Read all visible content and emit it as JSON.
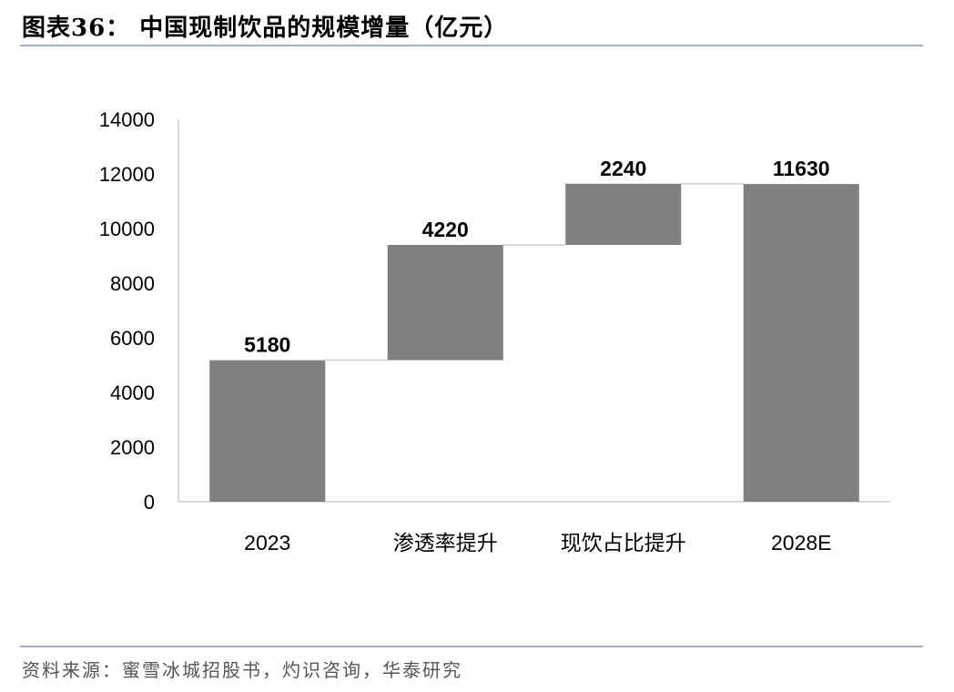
{
  "title": "图表36：  中国现制饮品的规模增量（亿元）",
  "source": "资料来源：蜜雪冰城招股书，灼识咨询，华泰研究",
  "colors": {
    "bar": "#808080",
    "connector": "#d9d9d9",
    "axis": "#d9d9d9",
    "text": "#000000",
    "rule": "#9fb4cc"
  },
  "chart_data": {
    "type": "bar",
    "subtype": "waterfall",
    "categories": [
      "2023",
      "渗透率提升",
      "现饮占比提升",
      "2028E"
    ],
    "values": [
      5180,
      4220,
      2240,
      11630
    ],
    "bar_ranges": [
      [
        0,
        5180
      ],
      [
        5180,
        9400
      ],
      [
        9400,
        11640
      ],
      [
        0,
        11630
      ]
    ],
    "data_labels": [
      "5180",
      "4220",
      "2240",
      "11630"
    ],
    "y_ticks": [
      "0",
      "2000",
      "4000",
      "6000",
      "8000",
      "10000",
      "12000",
      "14000"
    ],
    "ylim": [
      0,
      14000
    ],
    "xlabel": "",
    "ylabel": "",
    "grid": false,
    "legend": "none"
  }
}
